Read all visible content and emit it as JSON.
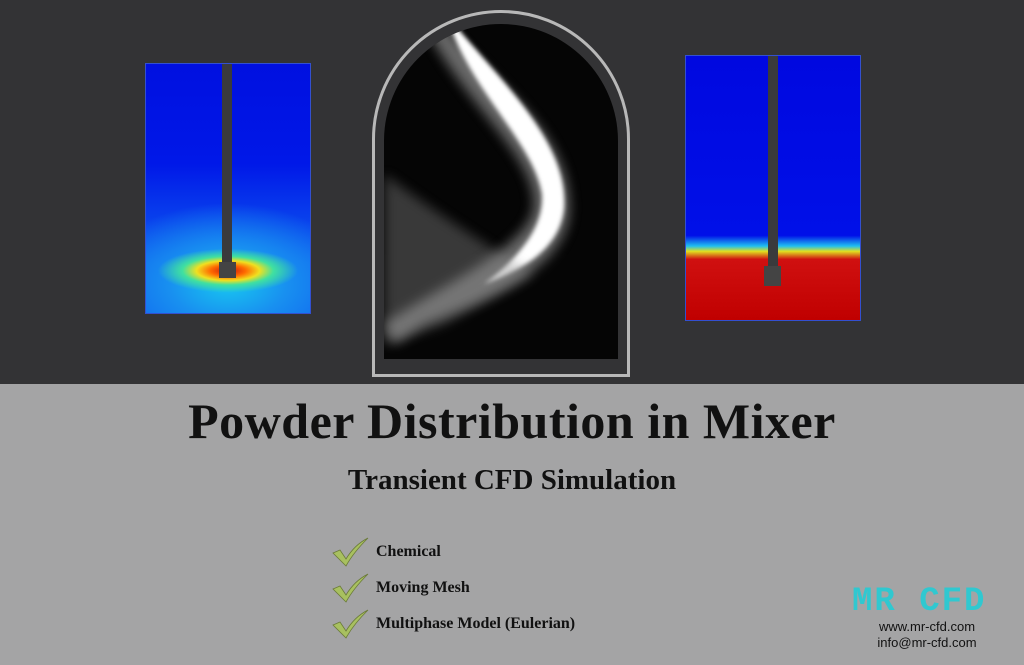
{
  "title": "Powder Distribution in Mixer",
  "subtitle": "Transient CFD Simulation",
  "features": [
    {
      "label": "Chemical",
      "icon": "checkmark-icon"
    },
    {
      "label": "Moving Mesh",
      "icon": "checkmark-icon"
    },
    {
      "label": "Multiphase Model (Eulerian)",
      "icon": "checkmark-icon"
    }
  ],
  "logo": {
    "text": "MR CFD",
    "website": "www.mr-cfd.com",
    "email": "info@mr-cfd.com"
  },
  "colors": {
    "top_background": "#333335",
    "bottom_background": "#a4a4a5",
    "logo": "#30c8d0",
    "check": "#a8c060"
  }
}
